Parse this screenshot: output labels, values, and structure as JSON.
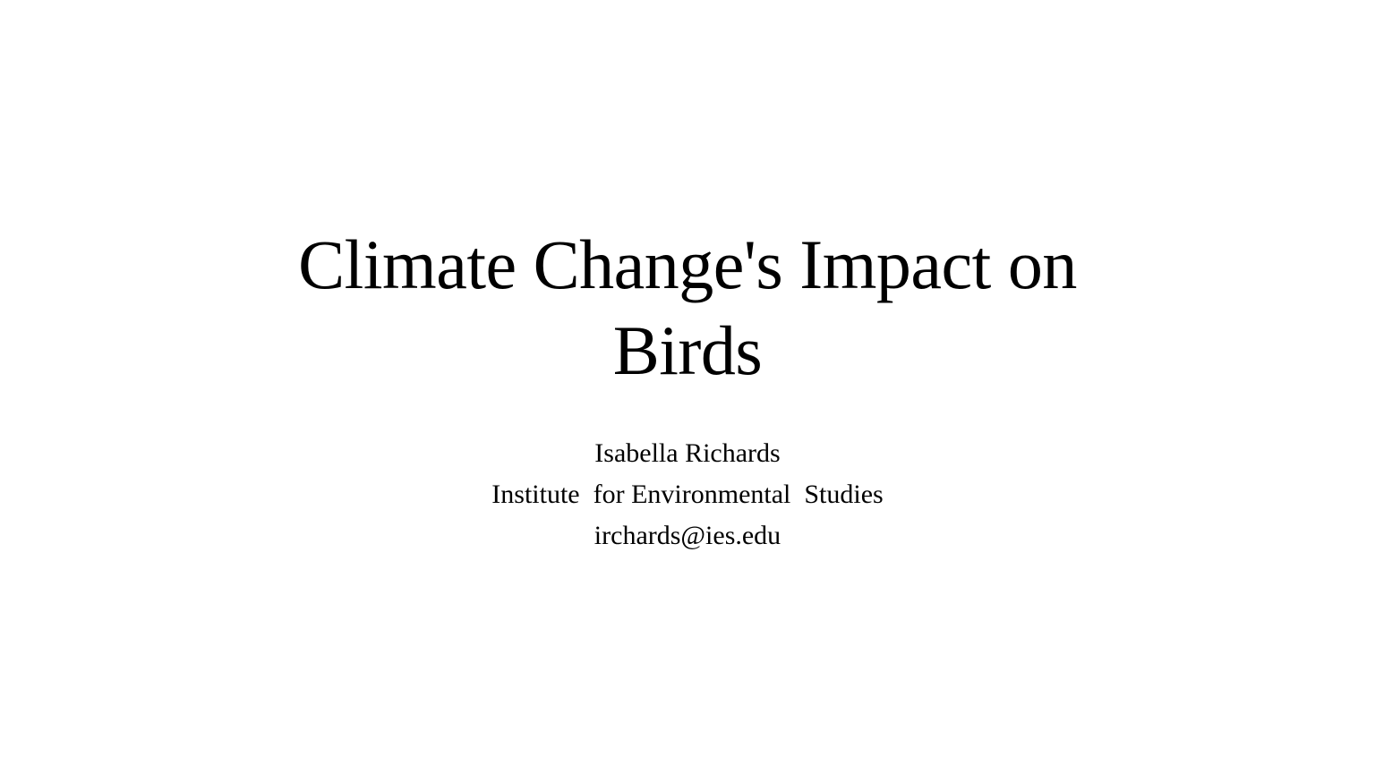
{
  "slide": {
    "title": "Climate Change's Impact on Birds",
    "author": "Isabella Richards",
    "institution": "Institute  for Environmental  Studies",
    "email": "irchards@ies.edu"
  }
}
